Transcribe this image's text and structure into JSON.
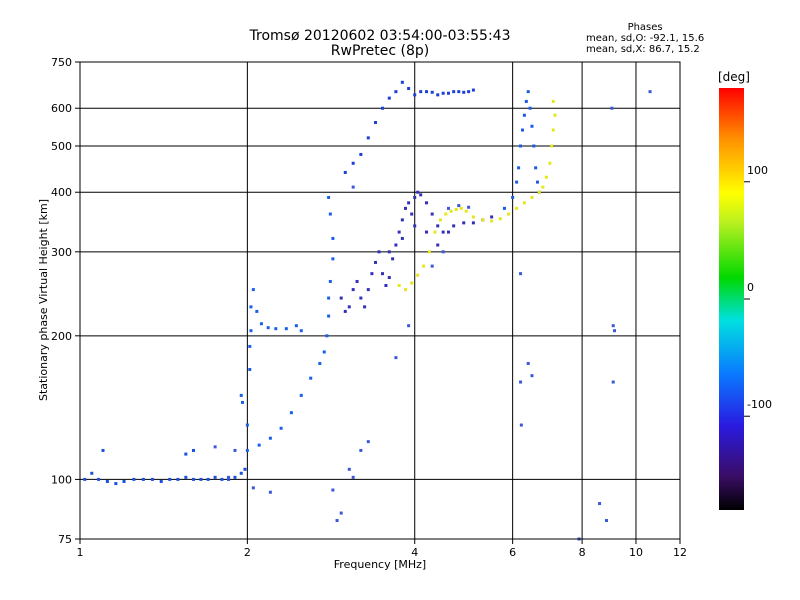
{
  "title_line1": "Tromsø 20120602 03:54:00-03:55:43",
  "title_line2": "RwPretec (8p)",
  "stats": {
    "header": "Phases",
    "line_o": "mean, sd,O: -92.1, 15.6",
    "line_x": "mean, sd,X:  86.7, 15.2"
  },
  "colorbar": {
    "unit": "[deg]",
    "ticks": [
      "100",
      "0",
      "-100"
    ],
    "tick_values": [
      100,
      0,
      -100
    ],
    "range": [
      -180,
      180
    ]
  },
  "chart_data": {
    "type": "scatter",
    "xlabel": "Frequency [MHz]",
    "ylabel": "Stationary phase Virtual Height [km]",
    "x_scale": "log",
    "y_scale": "log",
    "xlim": [
      1,
      12
    ],
    "ylim": [
      75,
      750
    ],
    "x_ticks": [
      1,
      2,
      4,
      6,
      8,
      10,
      12
    ],
    "y_ticks": [
      75,
      100,
      200,
      300,
      400,
      500,
      600,
      750
    ],
    "grid": true,
    "series": [
      {
        "points": [
          [
            1.02,
            100
          ],
          [
            1.05,
            103
          ],
          [
            1.08,
            100
          ],
          [
            1.12,
            99
          ],
          [
            1.16,
            98
          ],
          [
            1.2,
            99
          ],
          [
            1.25,
            100
          ],
          [
            1.3,
            100
          ],
          [
            1.35,
            100
          ],
          [
            1.4,
            99
          ],
          [
            1.45,
            100
          ],
          [
            1.5,
            100
          ],
          [
            1.55,
            101
          ],
          [
            1.6,
            100
          ],
          [
            1.65,
            100
          ],
          [
            1.7,
            100
          ],
          [
            1.75,
            101
          ],
          [
            1.8,
            100
          ],
          [
            1.85,
            100
          ],
          [
            1.9,
            101
          ],
          [
            1.95,
            103
          ],
          [
            1.98,
            105
          ],
          [
            1.6,
            115
          ],
          [
            1.55,
            113
          ],
          [
            1.1,
            115
          ]
        ],
        "color": "#1a4fe0"
      },
      {
        "points": [
          [
            2.0,
            115
          ],
          [
            2.0,
            130
          ],
          [
            2.02,
            170
          ],
          [
            2.02,
            190
          ],
          [
            2.03,
            205
          ],
          [
            2.03,
            230
          ],
          [
            2.05,
            250
          ],
          [
            2.08,
            225
          ],
          [
            2.12,
            212
          ],
          [
            2.18,
            208
          ],
          [
            2.25,
            207
          ],
          [
            2.35,
            207
          ],
          [
            2.45,
            210
          ],
          [
            2.5,
            205
          ],
          [
            2.1,
            118
          ],
          [
            2.2,
            122
          ],
          [
            2.3,
            128
          ],
          [
            2.4,
            138
          ],
          [
            2.5,
            150
          ],
          [
            2.6,
            163
          ],
          [
            2.7,
            175
          ],
          [
            2.75,
            185
          ],
          [
            2.78,
            200
          ],
          [
            2.8,
            220
          ],
          [
            2.8,
            240
          ],
          [
            2.82,
            260
          ],
          [
            2.85,
            290
          ],
          [
            2.85,
            320
          ],
          [
            2.82,
            360
          ],
          [
            2.8,
            390
          ],
          [
            1.95,
            150
          ],
          [
            1.96,
            145
          ]
        ],
        "color": "#1860e8"
      },
      {
        "points": [
          [
            2.95,
            240
          ],
          [
            3.0,
            225
          ],
          [
            3.05,
            230
          ],
          [
            3.1,
            250
          ],
          [
            3.15,
            260
          ],
          [
            3.2,
            240
          ],
          [
            3.25,
            230
          ],
          [
            3.3,
            250
          ],
          [
            3.35,
            270
          ],
          [
            3.4,
            285
          ],
          [
            3.45,
            300
          ],
          [
            3.5,
            270
          ],
          [
            3.55,
            255
          ],
          [
            3.6,
            265
          ],
          [
            3.65,
            290
          ],
          [
            3.7,
            310
          ],
          [
            3.75,
            330
          ],
          [
            3.8,
            350
          ],
          [
            3.85,
            370
          ],
          [
            3.9,
            380
          ],
          [
            3.95,
            360
          ],
          [
            4.0,
            390
          ],
          [
            4.05,
            400
          ],
          [
            4.1,
            395
          ],
          [
            4.2,
            380
          ],
          [
            4.3,
            360
          ],
          [
            4.4,
            340
          ],
          [
            4.5,
            330
          ],
          [
            4.6,
            330
          ],
          [
            4.7,
            340
          ],
          [
            4.9,
            345
          ],
          [
            5.1,
            345
          ],
          [
            5.3,
            350
          ],
          [
            5.5,
            355
          ],
          [
            3.6,
            300
          ],
          [
            3.8,
            320
          ],
          [
            4.0,
            340
          ],
          [
            4.2,
            330
          ],
          [
            4.4,
            310
          ]
        ],
        "color": "#3330b8"
      },
      {
        "points": [
          [
            3.0,
            440
          ],
          [
            3.1,
            460
          ],
          [
            3.2,
            480
          ],
          [
            3.3,
            520
          ],
          [
            3.4,
            560
          ],
          [
            3.5,
            600
          ],
          [
            3.6,
            630
          ],
          [
            3.7,
            650
          ],
          [
            3.8,
            680
          ],
          [
            3.9,
            660
          ],
          [
            4.0,
            640
          ],
          [
            4.1,
            650
          ],
          [
            4.2,
            650
          ],
          [
            4.3,
            648
          ],
          [
            4.4,
            640
          ],
          [
            4.5,
            645
          ],
          [
            4.6,
            645
          ],
          [
            4.7,
            650
          ],
          [
            4.8,
            650
          ],
          [
            4.9,
            648
          ],
          [
            5.0,
            650
          ],
          [
            5.1,
            655
          ]
        ],
        "color": "#1e3ed8"
      },
      {
        "points": [
          [
            5.8,
            370
          ],
          [
            6.0,
            390
          ],
          [
            6.1,
            420
          ],
          [
            6.15,
            450
          ],
          [
            6.2,
            500
          ],
          [
            6.25,
            540
          ],
          [
            6.3,
            580
          ],
          [
            6.35,
            620
          ],
          [
            6.4,
            650
          ],
          [
            6.45,
            600
          ],
          [
            6.5,
            550
          ],
          [
            6.55,
            500
          ],
          [
            6.6,
            450
          ],
          [
            6.65,
            420
          ],
          [
            6.7,
            400
          ]
        ],
        "color": "#1a5ae6"
      },
      {
        "points": [
          [
            3.75,
            255
          ],
          [
            3.85,
            250
          ],
          [
            3.95,
            258
          ],
          [
            4.05,
            268
          ],
          [
            4.15,
            280
          ],
          [
            4.25,
            300
          ],
          [
            4.35,
            330
          ],
          [
            4.45,
            350
          ],
          [
            4.55,
            360
          ],
          [
            4.65,
            365
          ],
          [
            4.75,
            368
          ],
          [
            4.85,
            370
          ],
          [
            4.95,
            365
          ],
          [
            5.1,
            355
          ],
          [
            5.3,
            350
          ],
          [
            5.5,
            348
          ],
          [
            5.7,
            352
          ],
          [
            5.9,
            360
          ],
          [
            6.1,
            370
          ],
          [
            6.3,
            380
          ],
          [
            6.5,
            390
          ],
          [
            6.7,
            400
          ],
          [
            6.8,
            410
          ],
          [
            6.9,
            430
          ],
          [
            7.0,
            460
          ],
          [
            7.05,
            500
          ],
          [
            7.1,
            540
          ],
          [
            7.15,
            580
          ],
          [
            7.1,
            620
          ]
        ],
        "color": "#e6e61a"
      },
      {
        "points": [
          [
            4.6,
            370
          ],
          [
            4.8,
            375
          ],
          [
            5.0,
            372
          ],
          [
            4.3,
            280
          ],
          [
            4.5,
            300
          ],
          [
            3.1,
            410
          ],
          [
            3.3,
            120
          ],
          [
            3.2,
            115
          ],
          [
            3.05,
            105
          ],
          [
            2.85,
            95
          ],
          [
            2.95,
            85
          ],
          [
            3.7,
            180
          ],
          [
            3.9,
            210
          ],
          [
            6.2,
            270
          ],
          [
            6.2,
            160
          ],
          [
            6.22,
            130
          ],
          [
            6.4,
            175
          ],
          [
            6.5,
            165
          ],
          [
            7.9,
            75
          ],
          [
            8.6,
            89
          ],
          [
            8.85,
            82
          ],
          [
            9.05,
            600
          ],
          [
            9.1,
            210
          ],
          [
            9.15,
            205
          ],
          [
            9.1,
            160
          ],
          [
            10.6,
            650
          ],
          [
            1.75,
            117
          ],
          [
            1.9,
            115
          ],
          [
            1.85,
            101
          ],
          [
            2.05,
            96
          ],
          [
            2.2,
            94
          ],
          [
            2.9,
            82
          ],
          [
            3.1,
            101
          ]
        ],
        "color": "#3a58d8"
      }
    ]
  }
}
